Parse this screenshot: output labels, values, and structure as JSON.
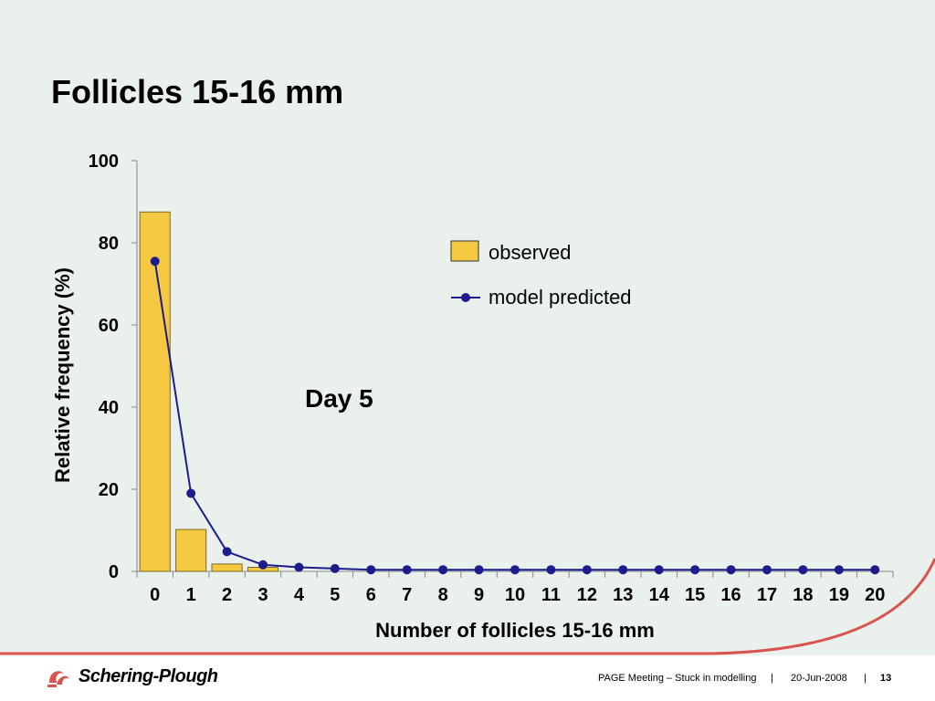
{
  "slide": {
    "title": "Follicles 15-16 mm",
    "annotation": "Day 5",
    "colors": {
      "background": "#eaf1ed",
      "bar_fill": "#f5c842",
      "bar_stroke": "#7a6a2a",
      "line": "#1c1c8c",
      "accent_curve": "#d9534f"
    }
  },
  "chart_data": {
    "type": "bar",
    "title": "",
    "xlabel": "Number of follicles 15-16 mm",
    "ylabel": "Relative frequency (%)",
    "categories": [
      "0",
      "1",
      "2",
      "3",
      "4",
      "5",
      "6",
      "7",
      "8",
      "9",
      "10",
      "11",
      "12",
      "13",
      "14",
      "15",
      "16",
      "17",
      "18",
      "19",
      "20"
    ],
    "ylim": [
      0,
      100
    ],
    "yticks": [
      "0",
      "20",
      "40",
      "60",
      "80",
      "100"
    ],
    "legend_position": "top-right",
    "series": [
      {
        "name": "observed",
        "type": "bar",
        "values": [
          87.5,
          10.2,
          1.8,
          1.0,
          0,
          0,
          0,
          0,
          0,
          0,
          0,
          0,
          0,
          0,
          0,
          0,
          0,
          0,
          0,
          0,
          0
        ]
      },
      {
        "name": "model predicted",
        "type": "line",
        "values": [
          75.5,
          19.0,
          4.8,
          1.6,
          1.0,
          0.7,
          0.4,
          0.4,
          0.4,
          0.4,
          0.4,
          0.4,
          0.4,
          0.4,
          0.4,
          0.4,
          0.4,
          0.4,
          0.4,
          0.4,
          0.4
        ]
      }
    ]
  },
  "footer": {
    "brand": "Schering-Plough",
    "meeting": "PAGE Meeting – Stuck in modelling",
    "date": "20-Jun-2008",
    "page": "13"
  }
}
